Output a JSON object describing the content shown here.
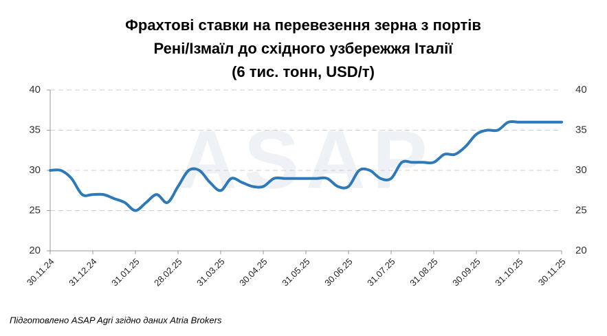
{
  "chart_data": {
    "type": "line",
    "title": [
      "Фрахтові ставки на перевезення зерна з портів",
      "Рені/Ізмаїл до східного узбережжя Італії",
      "(6 тис. тонн, USD/т)"
    ],
    "watermark": "ASAP",
    "source": "Підготовлено ASAP Agri згідно даних Atria Brokers",
    "categories": [
      "30.11.24",
      null,
      null,
      null,
      "31.12.24",
      null,
      null,
      null,
      "31.01.25",
      null,
      null,
      null,
      "28.02.25",
      null,
      null,
      null,
      "31.03.25",
      null,
      null,
      null,
      "30.04.25",
      null,
      null,
      null,
      "31.05.25",
      null,
      null,
      null,
      "30.06.25",
      null,
      null,
      null,
      "31.07.25",
      null,
      null,
      null,
      "31.08.25",
      null,
      null,
      null,
      "30.09.25",
      null,
      null,
      null,
      "31.10.25",
      null,
      null,
      null,
      "30.11.25"
    ],
    "values": [
      30,
      30,
      29,
      27,
      27,
      27,
      26.5,
      26,
      25,
      26,
      27,
      26,
      28,
      30,
      30,
      28.5,
      27.5,
      29,
      28.5,
      28,
      28,
      29,
      29,
      29,
      29,
      29,
      29,
      28,
      28,
      30,
      30,
      29,
      29,
      31,
      31,
      31,
      31,
      32,
      32,
      33,
      34.5,
      35,
      35,
      36,
      36,
      36,
      36,
      36,
      36
    ],
    "color": "#2e7ab8",
    "ylim": [
      20,
      40
    ],
    "yticks": [
      20,
      25,
      30,
      35,
      40
    ],
    "grid": true,
    "right_axis": true
  }
}
